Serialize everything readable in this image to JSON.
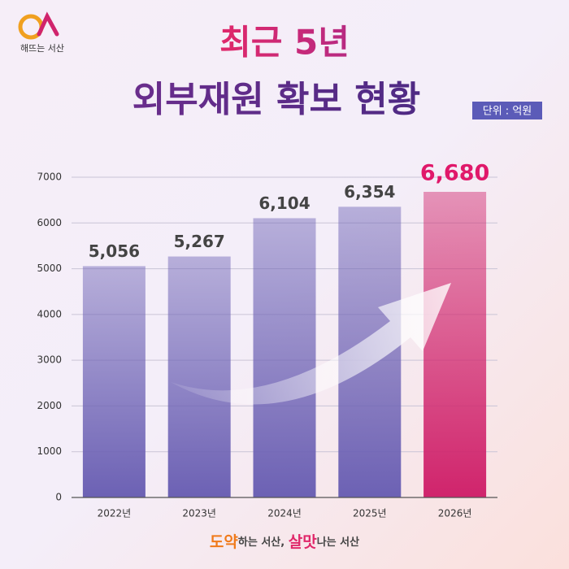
{
  "chart_data": {
    "type": "bar",
    "logo_text": "해뜨는 서산",
    "title": "최근 5년",
    "subtitle": "외부재원 확보 현황",
    "unit": "단위 : 억원",
    "categories": [
      "2022년",
      "2023년",
      "2024년",
      "2025년",
      "2026년"
    ],
    "values": [
      5056,
      5267,
      6104,
      6354,
      6680
    ],
    "value_labels": [
      "5,056",
      "5,267",
      "6,104",
      "6,354",
      "6,680"
    ],
    "colors": [
      "#6c61b4",
      "#6c61b4",
      "#6c61b4",
      "#6c61b4",
      "#d0246c"
    ],
    "value_label_colors": [
      "#444444",
      "#444444",
      "#444444",
      "#444444",
      "#e0186a"
    ],
    "ylim": [
      0,
      7000
    ],
    "yticks": [
      0,
      1000,
      2000,
      3000,
      4000,
      5000,
      6000,
      7000
    ],
    "grid": true,
    "footer": [
      "도약",
      "하는 서산, ",
      "살맛",
      "나는 서산"
    ]
  }
}
